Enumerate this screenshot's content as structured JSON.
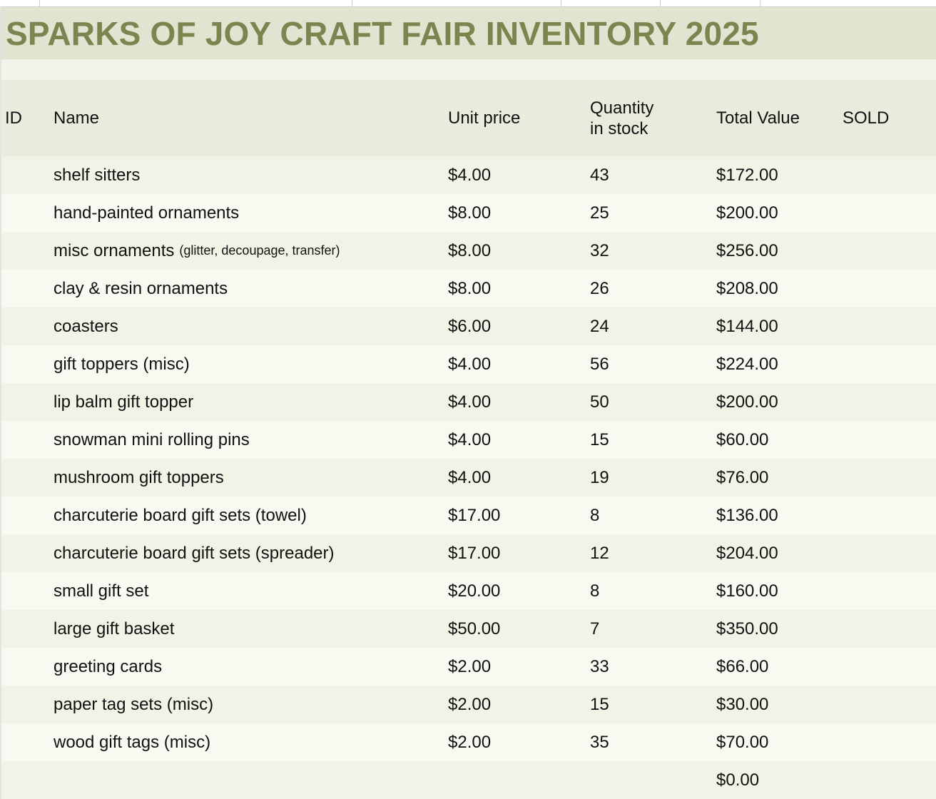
{
  "title": "SPARKS OF JOY CRAFT FAIR INVENTORY 2025",
  "colors": {
    "title_text": "#7a8550",
    "title_bg": "#e0e4d0",
    "header_bg": "#e8ecdc",
    "row_odd_bg": "#f1f3e6",
    "row_even_bg": "#f8f9f0"
  },
  "columns": {
    "id": "ID",
    "name": "Name",
    "unit_price": "Unit price",
    "quantity_line1": "Quantity",
    "quantity_line2": "in stock",
    "total_value": "Total Value",
    "sold": "SOLD"
  },
  "rows": [
    {
      "id": "",
      "name": "shelf sitters",
      "note": "",
      "unit_price": "$4.00",
      "quantity": "43",
      "total_value": "$172.00",
      "sold": ""
    },
    {
      "id": "",
      "name": "hand-painted ornaments",
      "note": "",
      "unit_price": "$8.00",
      "quantity": "25",
      "total_value": "$200.00",
      "sold": ""
    },
    {
      "id": "",
      "name": "misc ornaments",
      "note": "(glitter, decoupage, transfer)",
      "unit_price": "$8.00",
      "quantity": "32",
      "total_value": "$256.00",
      "sold": ""
    },
    {
      "id": "",
      "name": "clay & resin ornaments",
      "note": "",
      "unit_price": "$8.00",
      "quantity": "26",
      "total_value": "$208.00",
      "sold": ""
    },
    {
      "id": "",
      "name": "coasters",
      "note": "",
      "unit_price": "$6.00",
      "quantity": "24",
      "total_value": "$144.00",
      "sold": ""
    },
    {
      "id": "",
      "name": "gift toppers (misc)",
      "note": "",
      "unit_price": "$4.00",
      "quantity": "56",
      "total_value": "$224.00",
      "sold": ""
    },
    {
      "id": "",
      "name": "lip balm gift topper",
      "note": "",
      "unit_price": "$4.00",
      "quantity": "50",
      "total_value": "$200.00",
      "sold": ""
    },
    {
      "id": "",
      "name": "snowman mini rolling pins",
      "note": "",
      "unit_price": "$4.00",
      "quantity": "15",
      "total_value": "$60.00",
      "sold": ""
    },
    {
      "id": "",
      "name": "mushroom gift toppers",
      "note": "",
      "unit_price": "$4.00",
      "quantity": "19",
      "total_value": "$76.00",
      "sold": ""
    },
    {
      "id": "",
      "name": "charcuterie board gift sets (towel)",
      "note": "",
      "unit_price": "$17.00",
      "quantity": "8",
      "total_value": "$136.00",
      "sold": ""
    },
    {
      "id": "",
      "name": "charcuterie board gift sets (spreader)",
      "note": "",
      "unit_price": "$17.00",
      "quantity": "12",
      "total_value": "$204.00",
      "sold": ""
    },
    {
      "id": "",
      "name": "small gift set",
      "note": "",
      "unit_price": "$20.00",
      "quantity": "8",
      "total_value": "$160.00",
      "sold": ""
    },
    {
      "id": "",
      "name": "large gift basket",
      "note": "",
      "unit_price": "$50.00",
      "quantity": "7",
      "total_value": "$350.00",
      "sold": ""
    },
    {
      "id": "",
      "name": "greeting cards",
      "note": "",
      "unit_price": "$2.00",
      "quantity": "33",
      "total_value": "$66.00",
      "sold": ""
    },
    {
      "id": "",
      "name": "paper tag sets (misc)",
      "note": "",
      "unit_price": "$2.00",
      "quantity": "15",
      "total_value": "$30.00",
      "sold": ""
    },
    {
      "id": "",
      "name": "wood gift tags (misc)",
      "note": "",
      "unit_price": "$2.00",
      "quantity": "35",
      "total_value": "$70.00",
      "sold": ""
    },
    {
      "id": "",
      "name": "",
      "note": "",
      "unit_price": "",
      "quantity": "",
      "total_value": "$0.00",
      "sold": ""
    }
  ]
}
